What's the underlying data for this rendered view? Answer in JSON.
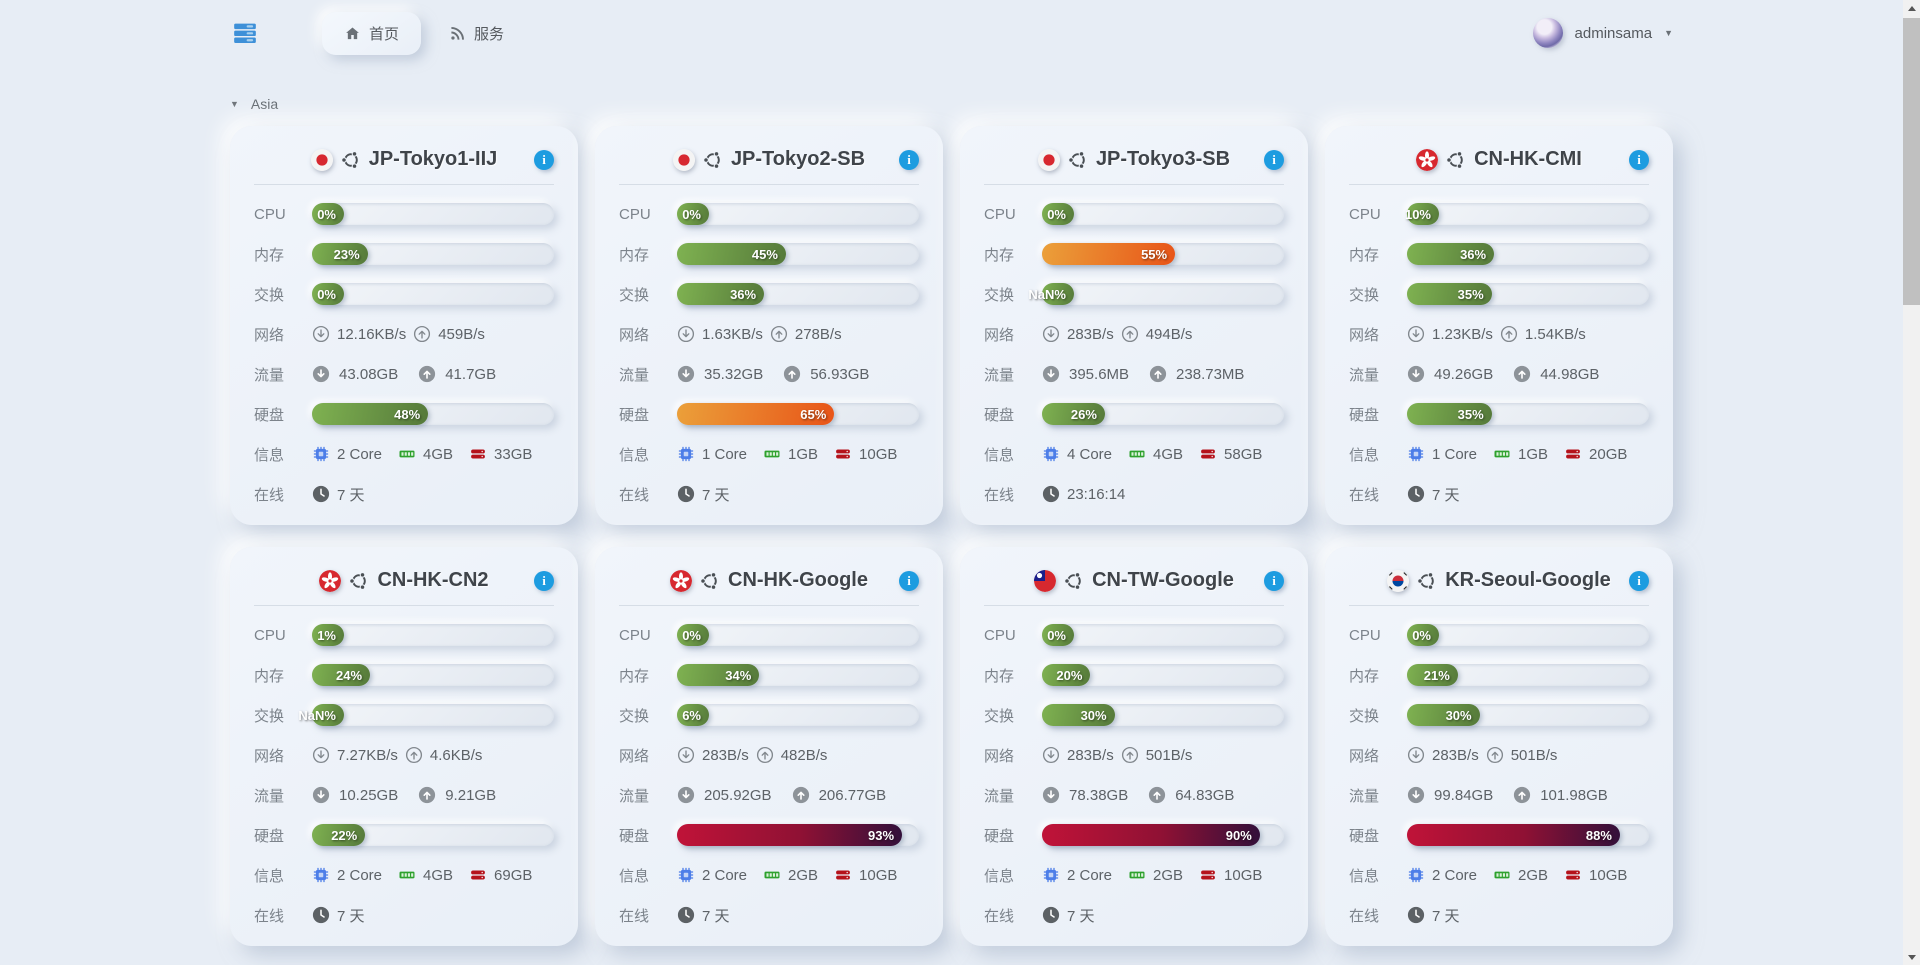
{
  "nav": {
    "tabs": [
      {
        "label": "首页",
        "icon": "home-icon",
        "active": true
      },
      {
        "label": "服务",
        "icon": "rss-icon",
        "active": false
      }
    ],
    "user": {
      "name": "adminsama"
    }
  },
  "section": {
    "label": "Asia"
  },
  "card_labels": {
    "cpu": "CPU",
    "mem": "内存",
    "swap": "交换",
    "net": "网络",
    "traffic": "流量",
    "disk": "硬盘",
    "info": "信息",
    "online": "在线"
  },
  "colors": {
    "accent_blue": "#1d9ce0",
    "logo_blue": "#3e90d8",
    "bar_green": [
      "#7fb251",
      "#55793a"
    ],
    "bar_orange": [
      "#eba03a",
      "#e85418"
    ],
    "bar_red": [
      "#c01338",
      "#33103a"
    ]
  },
  "servers": [
    {
      "name": "JP-Tokyo1-IIJ",
      "flag": "jp",
      "os": "ubuntu",
      "cpu": {
        "pct": 0,
        "text": "0%"
      },
      "mem": {
        "pct": 23,
        "text": "23%"
      },
      "swap": {
        "pct": 0,
        "text": "0%"
      },
      "net": {
        "down": "12.16KB/s",
        "up": "459B/s"
      },
      "traffic": {
        "down": "43.08GB",
        "up": "41.7GB"
      },
      "disk": {
        "pct": 48,
        "text": "48%"
      },
      "info": {
        "cores": "2 Core",
        "ram": "4GB",
        "disk": "33GB"
      },
      "online": "7 天"
    },
    {
      "name": "JP-Tokyo2-SB",
      "flag": "jp",
      "os": "ubuntu",
      "cpu": {
        "pct": 0,
        "text": "0%"
      },
      "mem": {
        "pct": 45,
        "text": "45%"
      },
      "swap": {
        "pct": 36,
        "text": "36%"
      },
      "net": {
        "down": "1.63KB/s",
        "up": "278B/s"
      },
      "traffic": {
        "down": "35.32GB",
        "up": "56.93GB"
      },
      "disk": {
        "pct": 65,
        "text": "65%"
      },
      "info": {
        "cores": "1 Core",
        "ram": "1GB",
        "disk": "10GB"
      },
      "online": "7 天"
    },
    {
      "name": "JP-Tokyo3-SB",
      "flag": "jp",
      "os": "ubuntu",
      "cpu": {
        "pct": 0,
        "text": "0%"
      },
      "mem": {
        "pct": 55,
        "text": "55%"
      },
      "swap": {
        "pct": null,
        "text": "NaN%"
      },
      "net": {
        "down": "283B/s",
        "up": "494B/s"
      },
      "traffic": {
        "down": "395.6MB",
        "up": "238.73MB"
      },
      "disk": {
        "pct": 26,
        "text": "26%"
      },
      "info": {
        "cores": "4 Core",
        "ram": "4GB",
        "disk": "58GB"
      },
      "online": "23:16:14"
    },
    {
      "name": "CN-HK-CMI",
      "flag": "hk",
      "os": "ubuntu",
      "cpu": {
        "pct": 10,
        "text": "10%"
      },
      "mem": {
        "pct": 36,
        "text": "36%"
      },
      "swap": {
        "pct": 35,
        "text": "35%"
      },
      "net": {
        "down": "1.23KB/s",
        "up": "1.54KB/s"
      },
      "traffic": {
        "down": "49.26GB",
        "up": "44.98GB"
      },
      "disk": {
        "pct": 35,
        "text": "35%"
      },
      "info": {
        "cores": "1 Core",
        "ram": "1GB",
        "disk": "20GB"
      },
      "online": "7 天"
    },
    {
      "name": "CN-HK-CN2",
      "flag": "hk",
      "os": "ubuntu",
      "cpu": {
        "pct": 1,
        "text": "1%"
      },
      "mem": {
        "pct": 24,
        "text": "24%"
      },
      "swap": {
        "pct": null,
        "text": "NaN%"
      },
      "net": {
        "down": "7.27KB/s",
        "up": "4.6KB/s"
      },
      "traffic": {
        "down": "10.25GB",
        "up": "9.21GB"
      },
      "disk": {
        "pct": 22,
        "text": "22%"
      },
      "info": {
        "cores": "2 Core",
        "ram": "4GB",
        "disk": "69GB"
      },
      "online": "7 天"
    },
    {
      "name": "CN-HK-Google",
      "flag": "hk",
      "os": "ubuntu",
      "cpu": {
        "pct": 0,
        "text": "0%"
      },
      "mem": {
        "pct": 34,
        "text": "34%"
      },
      "swap": {
        "pct": 6,
        "text": "6%"
      },
      "net": {
        "down": "283B/s",
        "up": "482B/s"
      },
      "traffic": {
        "down": "205.92GB",
        "up": "206.77GB"
      },
      "disk": {
        "pct": 93,
        "text": "93%"
      },
      "info": {
        "cores": "2 Core",
        "ram": "2GB",
        "disk": "10GB"
      },
      "online": "7 天"
    },
    {
      "name": "CN-TW-Google",
      "flag": "tw",
      "os": "ubuntu",
      "cpu": {
        "pct": 0,
        "text": "0%"
      },
      "mem": {
        "pct": 20,
        "text": "20%"
      },
      "swap": {
        "pct": 30,
        "text": "30%"
      },
      "net": {
        "down": "283B/s",
        "up": "501B/s"
      },
      "traffic": {
        "down": "78.38GB",
        "up": "64.83GB"
      },
      "disk": {
        "pct": 90,
        "text": "90%"
      },
      "info": {
        "cores": "2 Core",
        "ram": "2GB",
        "disk": "10GB"
      },
      "online": "7 天"
    },
    {
      "name": "KR-Seoul-Google",
      "flag": "kr",
      "os": "ubuntu",
      "cpu": {
        "pct": 0,
        "text": "0%"
      },
      "mem": {
        "pct": 21,
        "text": "21%"
      },
      "swap": {
        "pct": 30,
        "text": "30%"
      },
      "net": {
        "down": "283B/s",
        "up": "501B/s"
      },
      "traffic": {
        "down": "99.84GB",
        "up": "101.98GB"
      },
      "disk": {
        "pct": 88,
        "text": "88%"
      },
      "info": {
        "cores": "2 Core",
        "ram": "2GB",
        "disk": "10GB"
      },
      "online": "7 天"
    }
  ]
}
